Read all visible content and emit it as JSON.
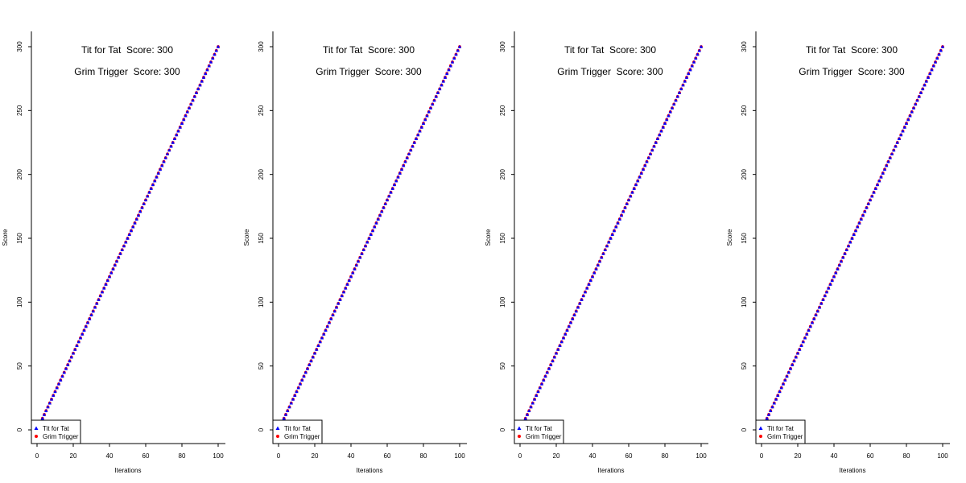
{
  "chart_data": [
    {
      "type": "scatter",
      "xlabel": "Iterations",
      "ylabel": "Score",
      "xlim": [
        0,
        100
      ],
      "ylim": [
        0,
        300
      ],
      "x_ticks": [
        0,
        20,
        40,
        60,
        80,
        100
      ],
      "y_ticks": [
        0,
        50,
        100,
        150,
        200,
        250,
        300
      ],
      "grid": false,
      "legend_position": "bottom-left",
      "score_labels": [
        "Tit for Tat  Score: 300",
        "Grim Trigger  Score: 300"
      ],
      "series": [
        {
          "name": "Tit for Tat",
          "marker": "triangle",
          "color": "#0000ff",
          "x_start": 1,
          "x_end": 100,
          "slope": 3,
          "final_value": 300
        },
        {
          "name": "Grim Trigger",
          "marker": "circle",
          "color": "#ff0000",
          "x_start": 1,
          "x_end": 100,
          "slope": 3,
          "final_value": 300
        }
      ]
    },
    {
      "type": "scatter",
      "xlabel": "Iterations",
      "ylabel": "Score",
      "xlim": [
        0,
        100
      ],
      "ylim": [
        0,
        300
      ],
      "x_ticks": [
        0,
        20,
        40,
        60,
        80,
        100
      ],
      "y_ticks": [
        0,
        50,
        100,
        150,
        200,
        250,
        300
      ],
      "grid": false,
      "legend_position": "bottom-left",
      "score_labels": [
        "Tit for Tat  Score: 300",
        "Grim Trigger  Score: 300"
      ],
      "series": [
        {
          "name": "Tit for Tat",
          "marker": "triangle",
          "color": "#0000ff",
          "x_start": 1,
          "x_end": 100,
          "slope": 3,
          "final_value": 300
        },
        {
          "name": "Grim Trigger",
          "marker": "circle",
          "color": "#ff0000",
          "x_start": 1,
          "x_end": 100,
          "slope": 3,
          "final_value": 300
        }
      ]
    },
    {
      "type": "scatter",
      "xlabel": "Iterations",
      "ylabel": "Score",
      "xlim": [
        0,
        100
      ],
      "ylim": [
        0,
        300
      ],
      "x_ticks": [
        0,
        20,
        40,
        60,
        80,
        100
      ],
      "y_ticks": [
        0,
        50,
        100,
        150,
        200,
        250,
        300
      ],
      "grid": false,
      "legend_position": "bottom-left",
      "score_labels": [
        "Tit for Tat  Score: 300",
        "Grim Trigger  Score: 300"
      ],
      "series": [
        {
          "name": "Tit for Tat",
          "marker": "triangle",
          "color": "#0000ff",
          "x_start": 1,
          "x_end": 100,
          "slope": 3,
          "final_value": 300
        },
        {
          "name": "Grim Trigger",
          "marker": "circle",
          "color": "#ff0000",
          "x_start": 1,
          "x_end": 100,
          "slope": 3,
          "final_value": 300
        }
      ]
    },
    {
      "type": "scatter",
      "xlabel": "Iterations",
      "ylabel": "Score",
      "xlim": [
        0,
        100
      ],
      "ylim": [
        0,
        300
      ],
      "x_ticks": [
        0,
        20,
        40,
        60,
        80,
        100
      ],
      "y_ticks": [
        0,
        50,
        100,
        150,
        200,
        250,
        300
      ],
      "grid": false,
      "legend_position": "bottom-left",
      "score_labels": [
        "Tit for Tat  Score: 300",
        "Grim Trigger  Score: 300"
      ],
      "series": [
        {
          "name": "Tit for Tat",
          "marker": "triangle",
          "color": "#0000ff",
          "x_start": 1,
          "x_end": 100,
          "slope": 3,
          "final_value": 300
        },
        {
          "name": "Grim Trigger",
          "marker": "circle",
          "color": "#ff0000",
          "x_start": 1,
          "x_end": 100,
          "slope": 3,
          "final_value": 300
        }
      ]
    }
  ]
}
